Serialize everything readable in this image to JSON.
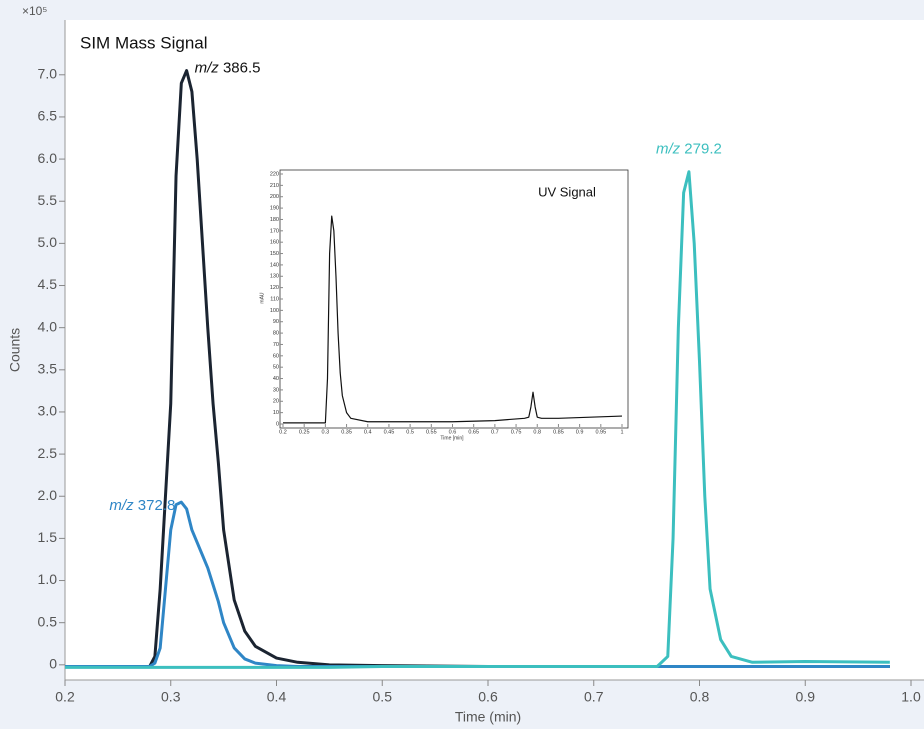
{
  "chart_data": [
    {
      "type": "line",
      "title": "SIM Mass Signal",
      "multiplier": "×10⁵",
      "xlabel": "Time (min)",
      "ylabel": "Counts",
      "x": [
        0.2,
        0.28,
        0.285,
        0.29,
        0.295,
        0.3,
        0.305,
        0.31,
        0.315,
        0.32,
        0.325,
        0.33,
        0.335,
        0.34,
        0.345,
        0.35,
        0.36,
        0.37,
        0.38,
        0.4,
        0.42,
        0.45,
        0.5,
        0.6,
        0.7,
        0.76,
        0.77,
        0.775,
        0.78,
        0.785,
        0.79,
        0.795,
        0.8,
        0.805,
        0.81,
        0.82,
        0.83,
        0.85,
        0.9,
        0.98
      ],
      "series": [
        {
          "name": "m/z 386.5",
          "color": "#1b2431",
          "values": [
            -0.02,
            -0.02,
            0.1,
            0.9,
            2.0,
            3.1,
            5.8,
            6.9,
            7.05,
            6.8,
            6.0,
            5.0,
            4.0,
            3.1,
            2.4,
            1.6,
            0.77,
            0.4,
            0.22,
            0.08,
            0.03,
            0.0,
            -0.01,
            -0.02,
            -0.02,
            -0.02,
            -0.02,
            -0.02,
            -0.02,
            -0.02,
            -0.02,
            -0.02,
            -0.02,
            -0.02,
            -0.02,
            -0.02,
            -0.02,
            -0.02,
            -0.02,
            -0.02
          ]
        },
        {
          "name": "m/z 372.8",
          "color": "#2f86c6",
          "values": [
            -0.02,
            -0.02,
            0.02,
            0.2,
            0.9,
            1.6,
            1.9,
            1.93,
            1.85,
            1.6,
            1.45,
            1.3,
            1.15,
            0.95,
            0.75,
            0.5,
            0.2,
            0.07,
            0.02,
            -0.01,
            -0.02,
            -0.02,
            -0.02,
            -0.02,
            -0.02,
            -0.02,
            -0.02,
            -0.02,
            -0.02,
            -0.02,
            -0.02,
            -0.02,
            -0.02,
            -0.02,
            -0.02,
            -0.02,
            -0.02,
            -0.02,
            -0.02,
            -0.02
          ]
        },
        {
          "name": "m/z 279.2",
          "color": "#3cbfbf",
          "values": [
            -0.03,
            -0.03,
            -0.03,
            -0.03,
            -0.03,
            -0.03,
            -0.03,
            -0.03,
            -0.03,
            -0.03,
            -0.03,
            -0.03,
            -0.03,
            -0.03,
            -0.03,
            -0.03,
            -0.03,
            -0.03,
            -0.03,
            -0.03,
            -0.03,
            -0.03,
            -0.02,
            -0.02,
            -0.02,
            -0.02,
            0.1,
            1.5,
            4.0,
            5.6,
            5.85,
            5.0,
            3.6,
            2.0,
            0.9,
            0.3,
            0.1,
            0.03,
            0.04,
            0.03
          ]
        }
      ],
      "xlim": [
        0.2,
        1.0
      ],
      "ylim": [
        -0.18,
        7.65
      ],
      "xticks": [
        0.2,
        0.3,
        0.4,
        0.5,
        0.6,
        0.7,
        0.8,
        0.9,
        {
          "value": 1,
          "label": "1.0"
        }
      ],
      "yticks": [
        0,
        0.5,
        {
          "value": 1,
          "label": "1.0"
        },
        1.5,
        {
          "value": 2,
          "label": "2.0"
        },
        2.5,
        {
          "value": 3,
          "label": "3.0"
        },
        3.5,
        {
          "value": 4,
          "label": "4.0"
        },
        4.5,
        {
          "value": 5,
          "label": "5.0"
        },
        5.5,
        {
          "value": 6,
          "label": "6.0"
        },
        6.5,
        {
          "value": 7,
          "label": "7.0"
        }
      ]
    },
    {
      "type": "line",
      "title": "UV Signal",
      "xlabel": "Time [min]",
      "ylabel": "mAU",
      "x": [
        0.2,
        0.3,
        0.305,
        0.31,
        0.315,
        0.32,
        0.325,
        0.33,
        0.335,
        0.34,
        0.35,
        0.36,
        0.4,
        0.5,
        0.6,
        0.7,
        0.77,
        0.78,
        0.785,
        0.79,
        0.795,
        0.8,
        0.81,
        0.85,
        1.0
      ],
      "series": [
        {
          "color": "#111111",
          "values": [
            1,
            1,
            40,
            150,
            183,
            170,
            130,
            80,
            45,
            25,
            10,
            5,
            2,
            2,
            2,
            3,
            5,
            6,
            15,
            28,
            15,
            6,
            5,
            5,
            7
          ]
        }
      ],
      "xlim": [
        0.2,
        1
      ],
      "ylim": [
        0,
        220
      ],
      "xticks": [
        0.2,
        0.25,
        0.3,
        0.35,
        0.4,
        0.45,
        0.5,
        0.55,
        0.6,
        0.65,
        0.7,
        0.75,
        0.8,
        0.85,
        0.9,
        0.95,
        1
      ],
      "yticks": [
        0,
        10,
        20,
        30,
        40,
        50,
        60,
        70,
        80,
        90,
        100,
        110,
        120,
        130,
        140,
        150,
        160,
        170,
        180,
        190,
        200,
        210,
        220
      ]
    }
  ]
}
